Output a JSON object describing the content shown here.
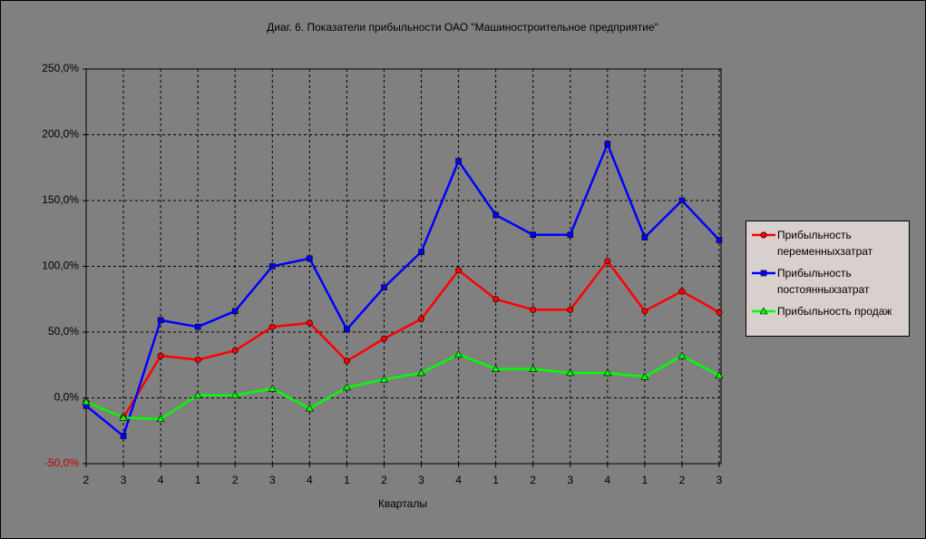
{
  "chart_data": {
    "type": "line",
    "title": "Диаг. 6. Показатели прибыльности ОАО \"Машиностроительное предприятие\"",
    "x_label": "Кварталы",
    "categories": [
      "2",
      "3",
      "4",
      "1",
      "2",
      "3",
      "4",
      "1",
      "2",
      "3",
      "4",
      "1",
      "2",
      "3",
      "4",
      "1",
      "2",
      "3"
    ],
    "series": [
      {
        "name": "Прибыльность переменныхзатрат",
        "color": "#ff0000",
        "marker": "circle",
        "values": [
          -3,
          -15,
          32,
          29,
          36,
          54,
          57,
          28,
          45,
          60,
          97,
          75,
          67,
          67,
          104,
          66,
          81,
          65
        ]
      },
      {
        "name": "Прибыльность постоянныхзатрат",
        "color": "#0000ff",
        "marker": "square",
        "values": [
          -6,
          -29,
          59,
          54,
          66,
          100,
          106,
          52,
          84,
          111,
          180,
          139,
          124,
          124,
          193,
          122,
          150,
          120
        ]
      },
      {
        "name": "Прибыльность продаж",
        "color": "#00ff00",
        "marker": "triangle",
        "values": [
          -3,
          -15,
          -16,
          2,
          2,
          7,
          -8,
          8,
          14,
          19,
          33,
          22,
          22,
          19,
          19,
          16,
          32,
          17
        ]
      }
    ],
    "ylim": [
      -50,
      250
    ],
    "yticks": [
      {
        "value": -50,
        "label": "-50,0%"
      },
      {
        "value": 0,
        "label": "0,0%"
      },
      {
        "value": 50,
        "label": "50,0%"
      },
      {
        "value": 100,
        "label": "100,0%"
      },
      {
        "value": 150,
        "label": "150,0%"
      },
      {
        "value": 200,
        "label": "200,0%"
      },
      {
        "value": 250,
        "label": "250,0%"
      }
    ],
    "negative_tick_color": "#c00000",
    "grid": true,
    "legend": "right"
  }
}
